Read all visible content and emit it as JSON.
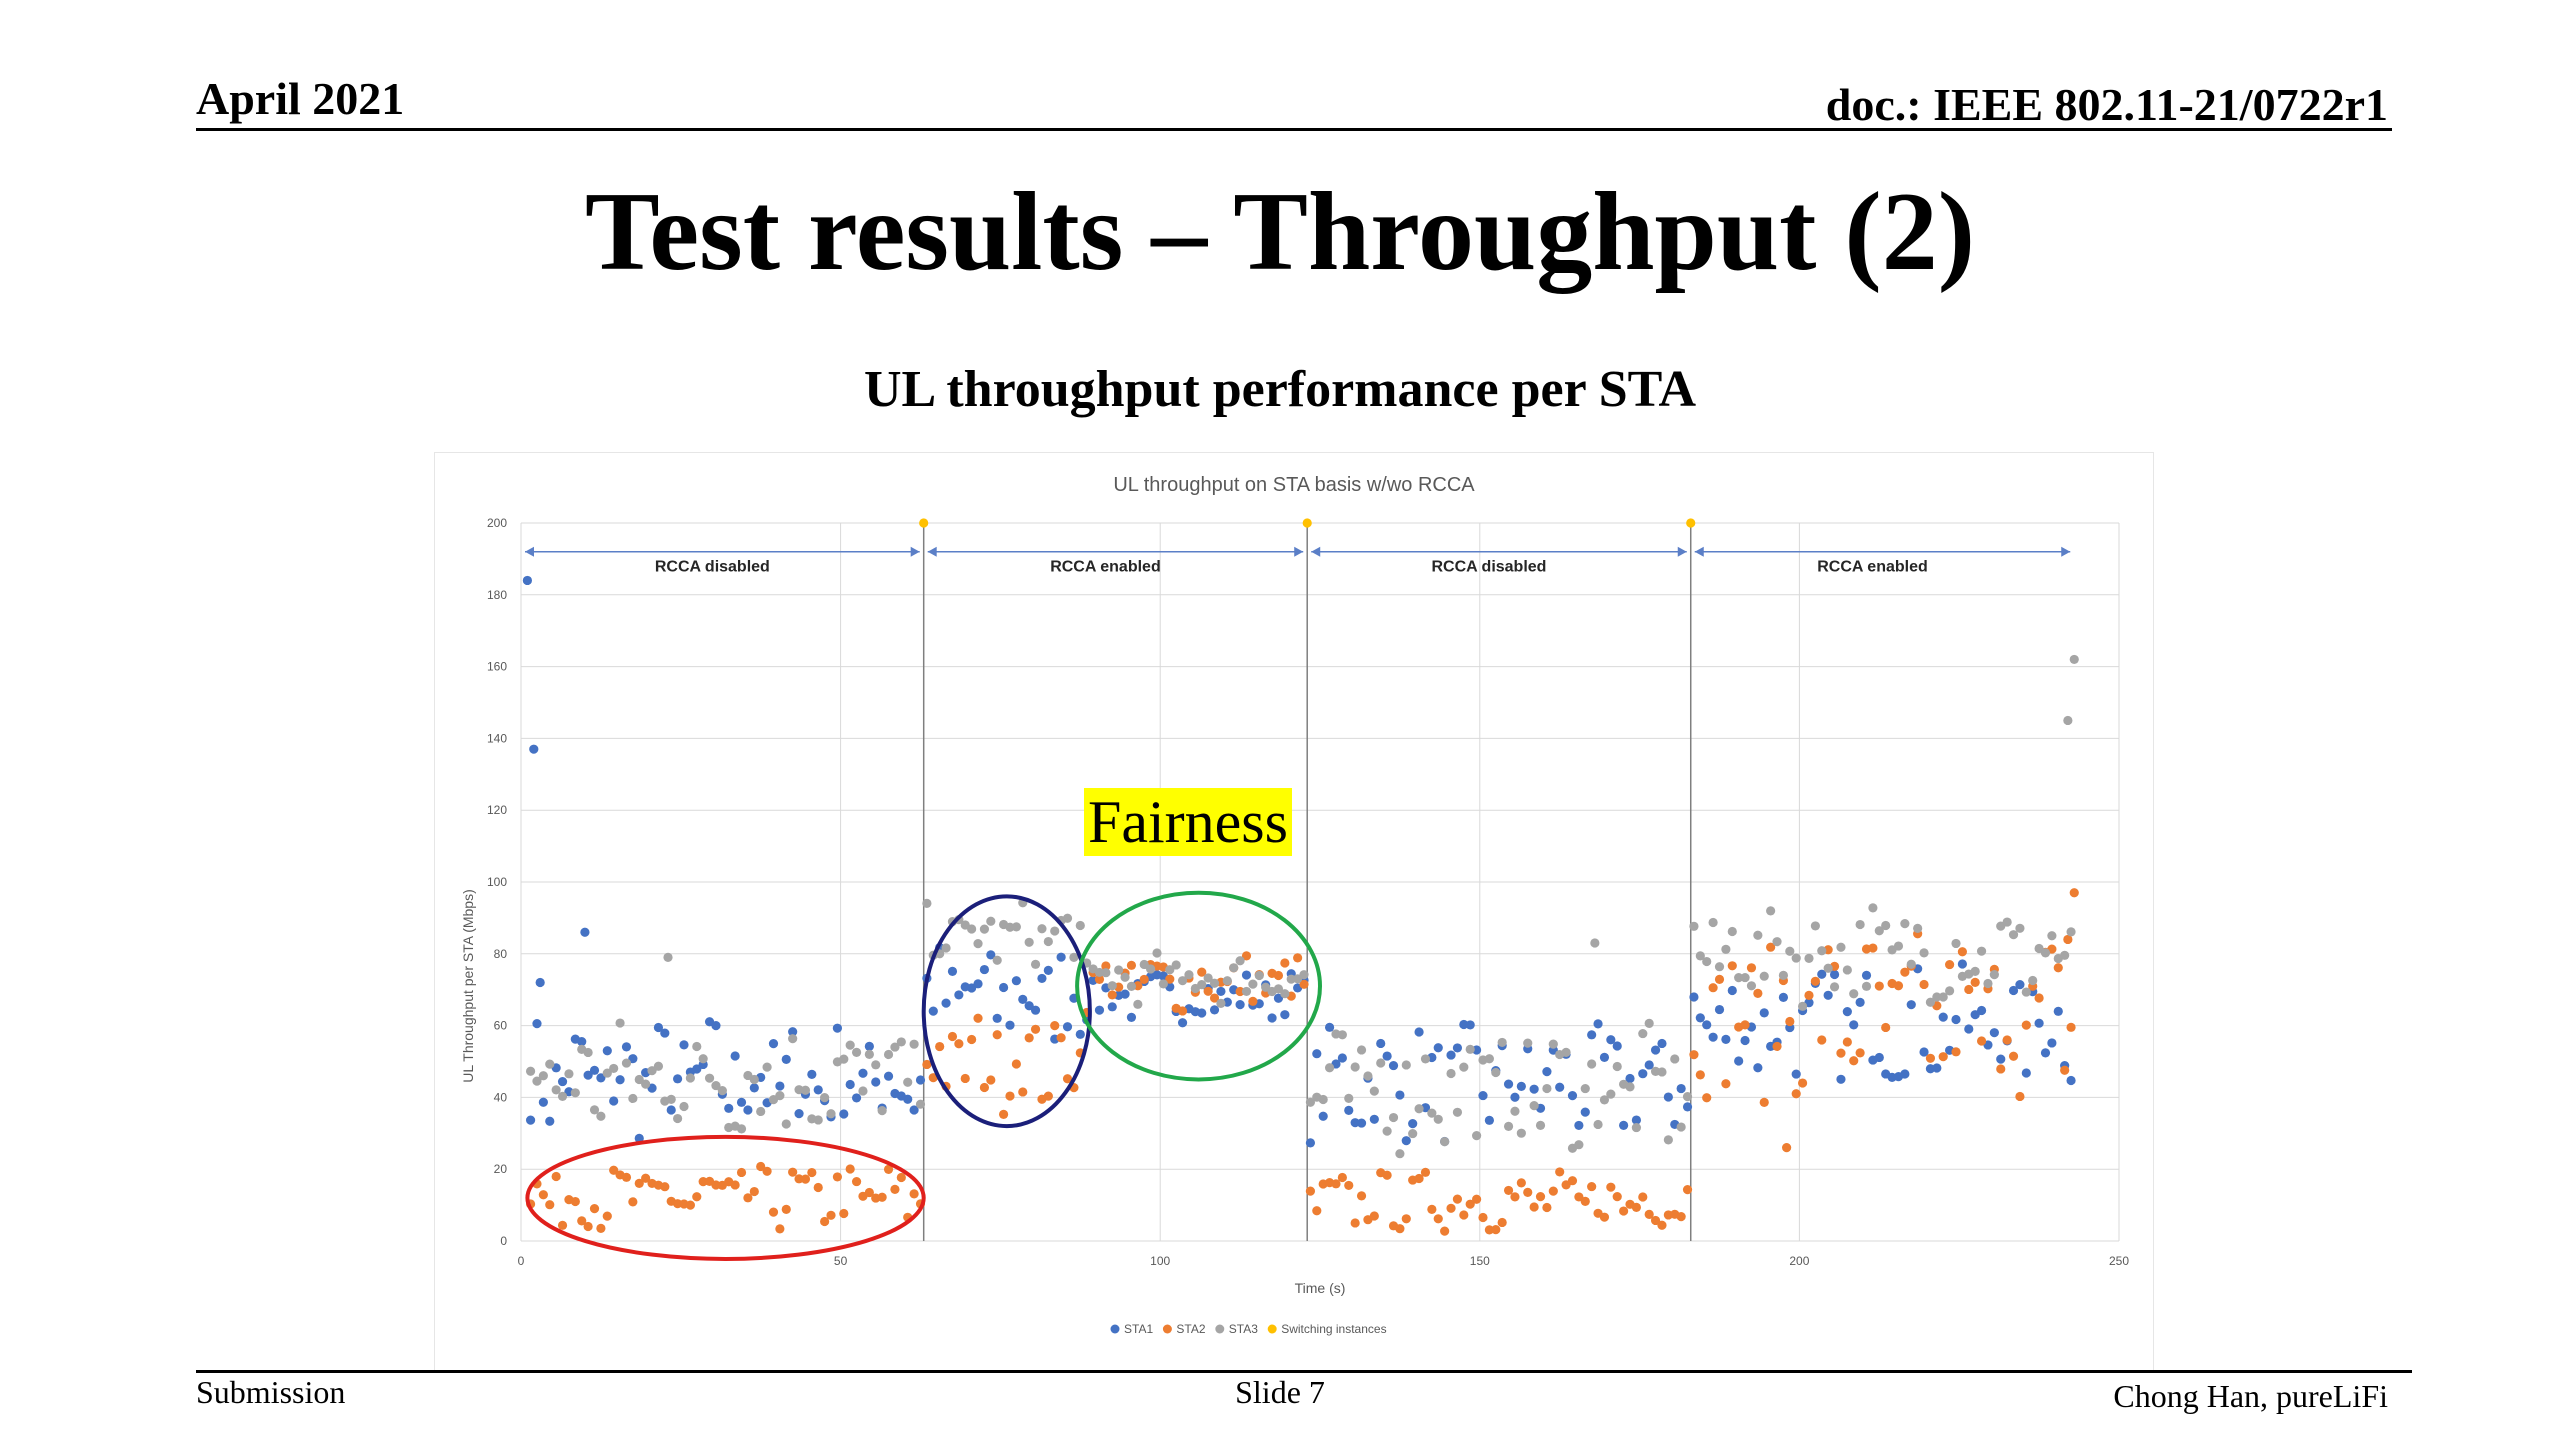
{
  "header": {
    "date": "April 2021",
    "doc": "doc.: IEEE 802.11-21/0722r1"
  },
  "title": "Test results – Throughput (2)",
  "subtitle": "UL throughput performance per STA",
  "footer": {
    "left": "Submission",
    "center": "Slide 7",
    "right": "Chong Han, pureLiFi"
  },
  "annotation": {
    "fairness": "Fairness"
  },
  "colors": {
    "sta1": "#4472c4",
    "sta2": "#ed7d31",
    "sta3": "#a5a5a5",
    "switch": "#ffc000",
    "red_ellipse": "#e0201c",
    "navy_ellipse": "#1b1f7a",
    "green_ellipse": "#22a84a"
  },
  "chart_data": {
    "type": "scatter",
    "title": "UL throughput on STA basis w/wo RCCA",
    "xlabel": "Time (s)",
    "ylabel": "UL Throughput per STA (Mbps)",
    "xlim": [
      0,
      250
    ],
    "ylim": [
      0,
      200
    ],
    "xticks": [
      0,
      50,
      100,
      150,
      200,
      250
    ],
    "yticks": [
      0,
      20,
      40,
      60,
      80,
      100,
      120,
      140,
      160,
      180,
      200
    ],
    "grid": true,
    "legend_position": "bottom",
    "switching_instances": [
      63,
      123,
      183
    ],
    "regions": [
      {
        "label": "RCCA disabled",
        "from": 0,
        "to": 63
      },
      {
        "label": "RCCA enabled",
        "from": 63,
        "to": 123
      },
      {
        "label": "RCCA disabled",
        "from": 123,
        "to": 183
      },
      {
        "label": "RCCA enabled",
        "from": 183,
        "to": 243
      }
    ],
    "series": [
      {
        "name": "STA1",
        "color": "#4472c4",
        "segments": [
          {
            "from": 1,
            "to": 63,
            "mean": 45,
            "amp": 15,
            "outliers": [
              [
                1,
                184
              ],
              [
                2,
                137
              ],
              [
                3,
                72
              ],
              [
                10,
                86
              ]
            ]
          },
          {
            "from": 63,
            "to": 88,
            "mean": 68,
            "amp": 14
          },
          {
            "from": 88,
            "to": 123,
            "mean": 68,
            "amp": 6
          },
          {
            "from": 123,
            "to": 183,
            "mean": 44,
            "amp": 14
          },
          {
            "from": 183,
            "to": 243,
            "mean": 60,
            "amp": 14
          }
        ]
      },
      {
        "name": "STA2",
        "color": "#ed7d31",
        "segments": [
          {
            "from": 1,
            "to": 63,
            "mean": 12,
            "amp": 8
          },
          {
            "from": 63,
            "to": 88,
            "mean": 50,
            "amp": 12
          },
          {
            "from": 88,
            "to": 123,
            "mean": 72,
            "amp": 7
          },
          {
            "from": 123,
            "to": 183,
            "mean": 11,
            "amp": 7
          },
          {
            "from": 183,
            "to": 243,
            "mean": 62,
            "amp": 20,
            "outliers": [
              [
                198,
                26
              ],
              [
                243,
                97
              ],
              [
                242,
                84
              ]
            ]
          }
        ]
      },
      {
        "name": "STA3",
        "color": "#a5a5a5",
        "segments": [
          {
            "from": 1,
            "to": 63,
            "mean": 45,
            "amp": 14,
            "outliers": [
              [
                23,
                79
              ]
            ]
          },
          {
            "from": 63,
            "to": 88,
            "mean": 85,
            "amp": 8
          },
          {
            "from": 88,
            "to": 123,
            "mean": 73,
            "amp": 6
          },
          {
            "from": 123,
            "to": 183,
            "mean": 42,
            "amp": 15,
            "outliers": [
              [
                168,
                83
              ]
            ]
          },
          {
            "from": 183,
            "to": 243,
            "mean": 80,
            "amp": 12,
            "outliers": [
              [
                243,
                162
              ],
              [
                242,
                145
              ]
            ]
          }
        ]
      },
      {
        "name": "Switching instances",
        "color": "#ffc000",
        "points": [
          [
            63,
            200
          ],
          [
            123,
            200
          ],
          [
            183,
            200
          ]
        ]
      }
    ]
  }
}
